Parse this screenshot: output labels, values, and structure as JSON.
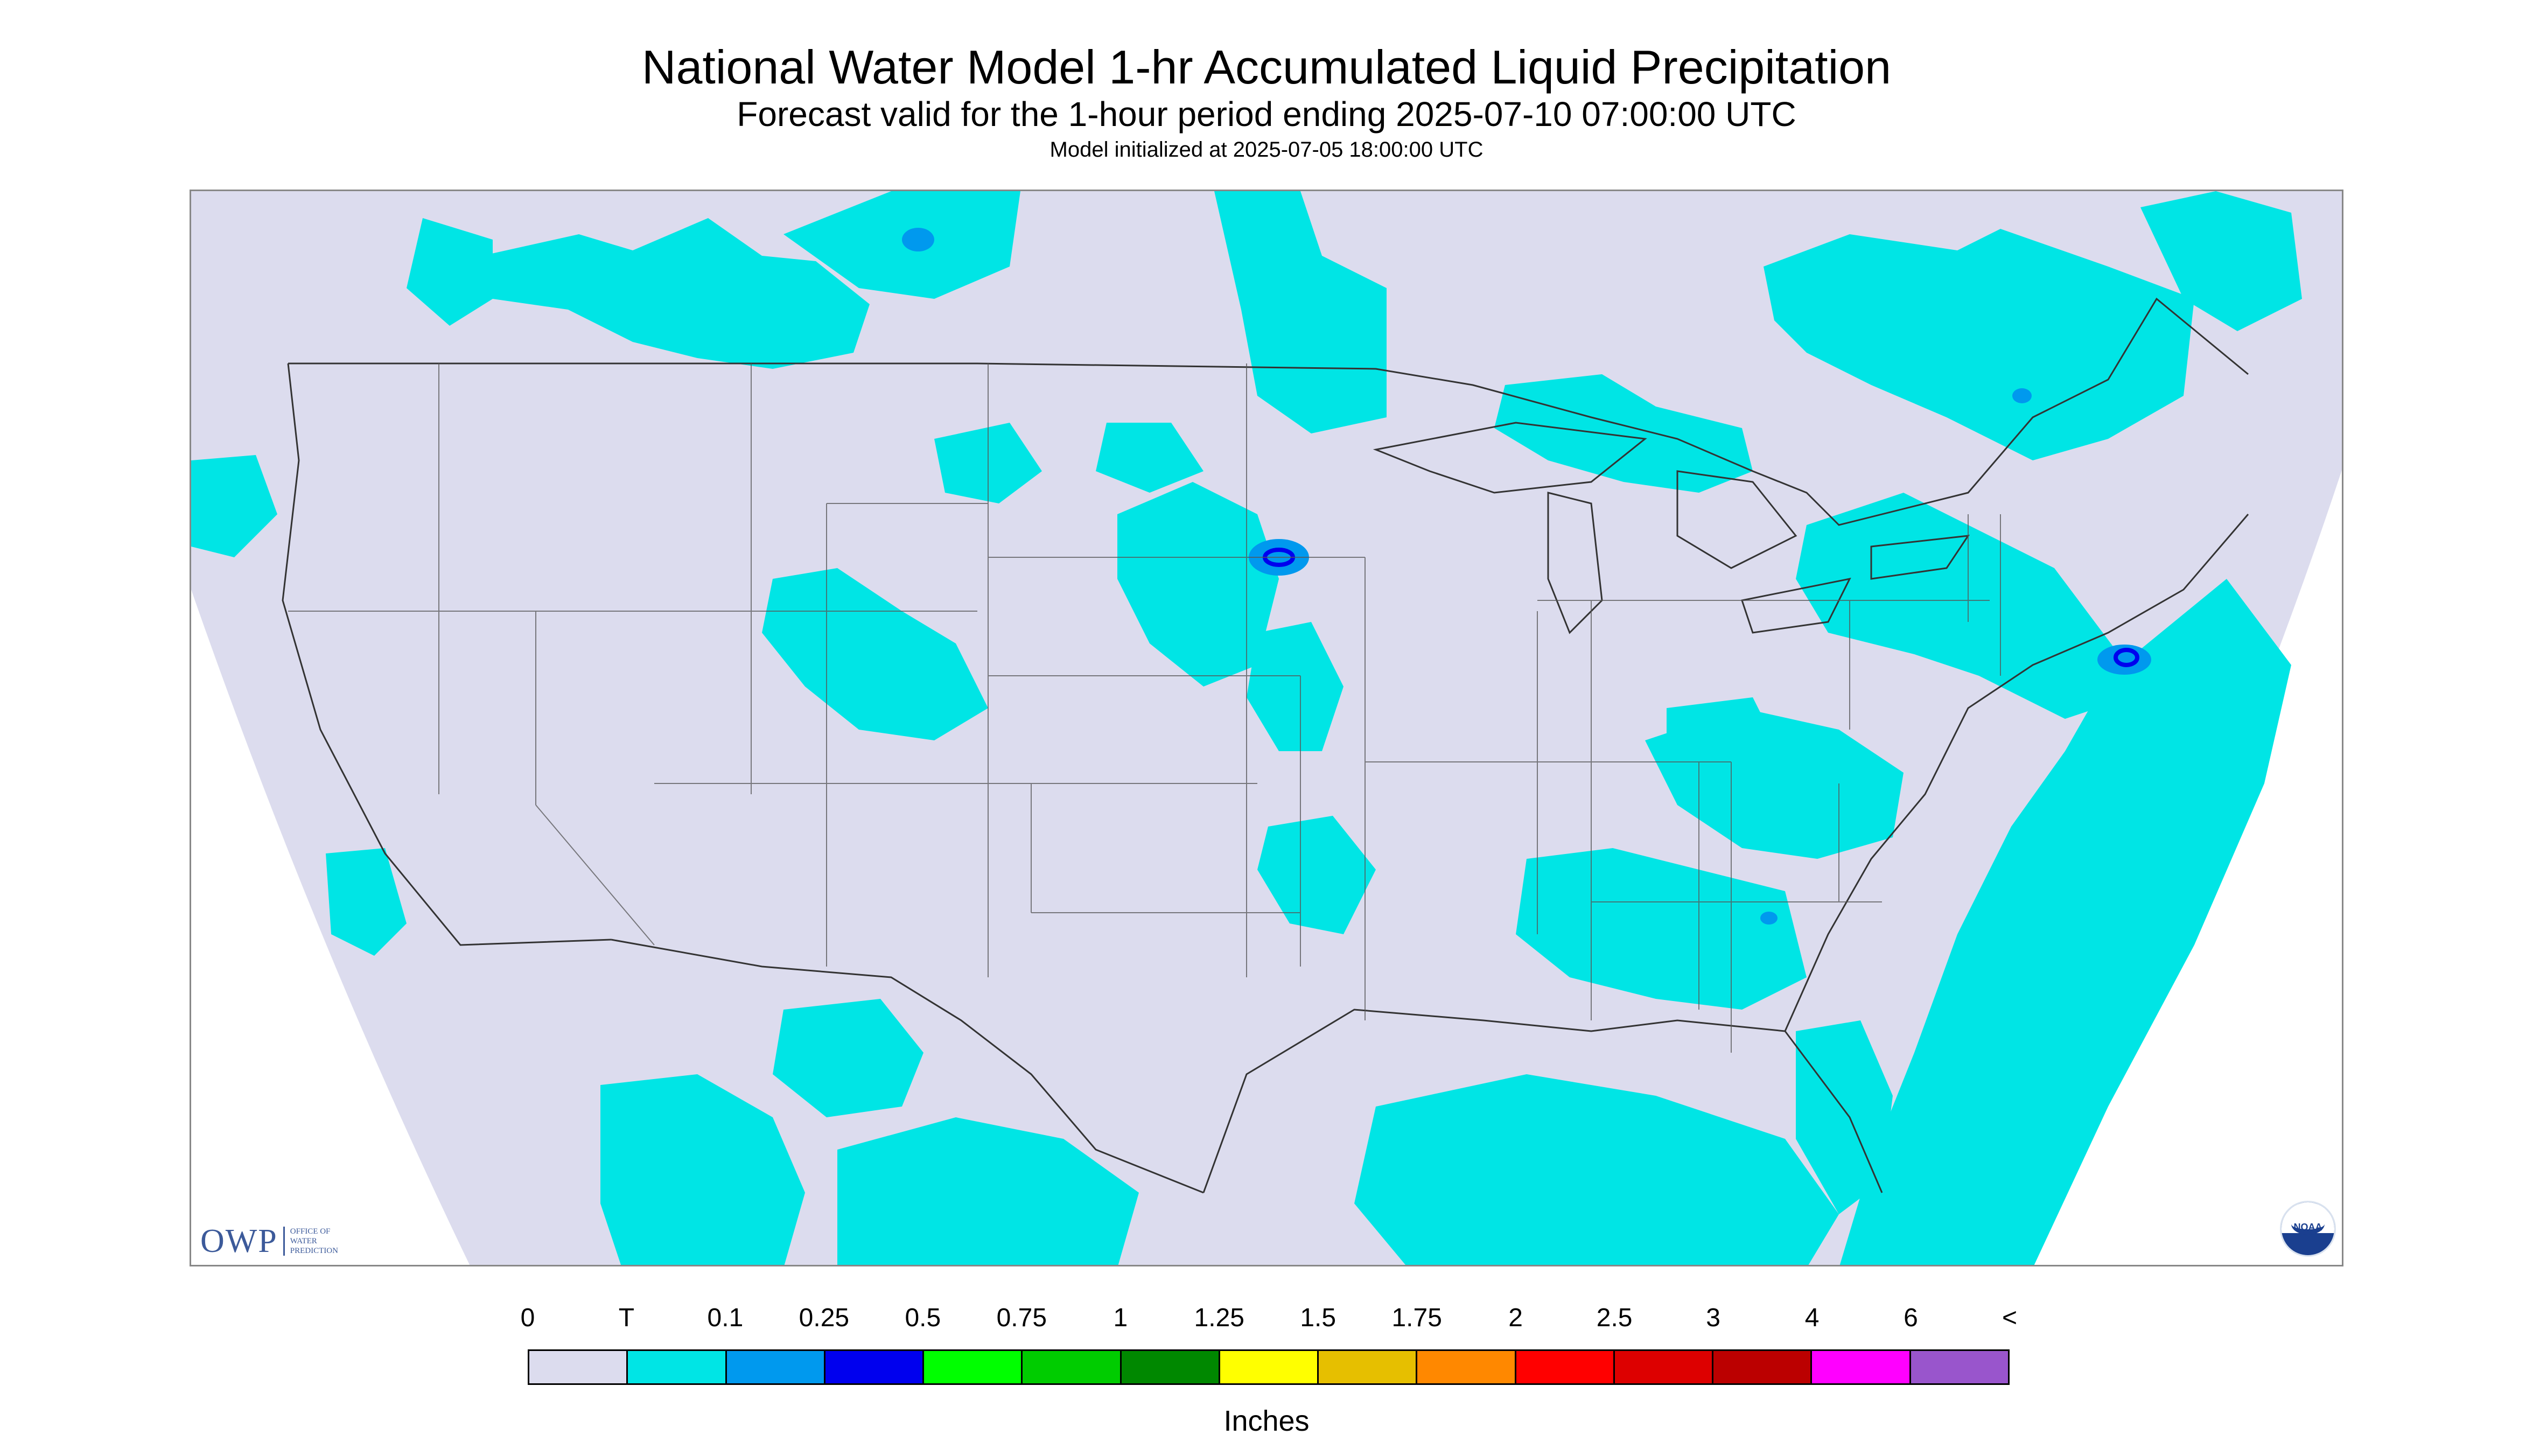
{
  "title": "National Water Model 1-hr Accumulated Liquid Precipitation",
  "subtitle": "Forecast valid for the 1-hour period ending 2025-07-10 07:00:00 UTC",
  "init_line": "Model initialized at 2025-07-05 18:00:00 UTC",
  "logos": {
    "owp_mark": "OWP",
    "owp_lines": [
      "OFFICE OF",
      "WATER",
      "PREDICTION"
    ],
    "noaa": "NOAA"
  },
  "legend": {
    "units": "Inches",
    "labels": [
      "0",
      "T",
      "0.1",
      "0.25",
      "0.5",
      "0.75",
      "1",
      "1.25",
      "1.5",
      "1.75",
      "2",
      "2.5",
      "3",
      "4",
      "6",
      "<"
    ],
    "colors": [
      "#dcdcee",
      "#00e5e5",
      "#0099ee",
      "#0000ee",
      "#00ff00",
      "#00cc00",
      "#008800",
      "#ffff00",
      "#e6bf00",
      "#ff8800",
      "#ff0000",
      "#dd0000",
      "#bb0000",
      "#ff00ff",
      "#9955cc"
    ]
  },
  "map": {
    "background_color": "#dcdcee",
    "trace_color": "#00e5e5",
    "light_color": "#0099ee",
    "moderate_color": "#0000ee"
  }
}
